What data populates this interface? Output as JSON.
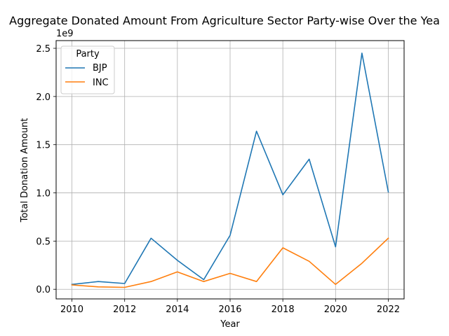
{
  "chart_data": {
    "type": "line",
    "title": "Aggregate Donated Amount From Agriculture Sector Party-wise Over the Yea",
    "xlabel": "Year",
    "ylabel": "Total Donation Amount",
    "y_offset_label": "1e9",
    "x": [
      2010,
      2011,
      2012,
      2013,
      2014,
      2015,
      2016,
      2017,
      2018,
      2019,
      2020,
      2021,
      2022
    ],
    "xlim": [
      2009.4,
      2022.6
    ],
    "ylim": [
      -0.1,
      2.58
    ],
    "y_scale_note": "values in units of 1e9",
    "x_ticks": [
      2010,
      2012,
      2014,
      2016,
      2018,
      2020,
      2022
    ],
    "y_ticks": [
      0.0,
      0.5,
      1.0,
      1.5,
      2.0,
      2.5
    ],
    "x_tick_labels": [
      "2010",
      "2012",
      "2014",
      "2016",
      "2018",
      "2020",
      "2022"
    ],
    "y_tick_labels": [
      "0.0",
      "0.5",
      "1.0",
      "1.5",
      "2.0",
      "2.5"
    ],
    "grid": true,
    "legend": {
      "title": "Party",
      "placement": "top-left"
    },
    "series": [
      {
        "name": "BJP",
        "color": "#1f77b4",
        "values": [
          0.05,
          0.08,
          0.06,
          0.53,
          0.3,
          0.1,
          0.56,
          1.64,
          0.98,
          1.35,
          0.44,
          2.45,
          1.01
        ]
      },
      {
        "name": "INC",
        "color": "#ff7f0e",
        "values": [
          0.045,
          0.025,
          0.02,
          0.08,
          0.18,
          0.08,
          0.165,
          0.08,
          0.43,
          0.29,
          0.05,
          0.27,
          0.53
        ]
      }
    ]
  }
}
